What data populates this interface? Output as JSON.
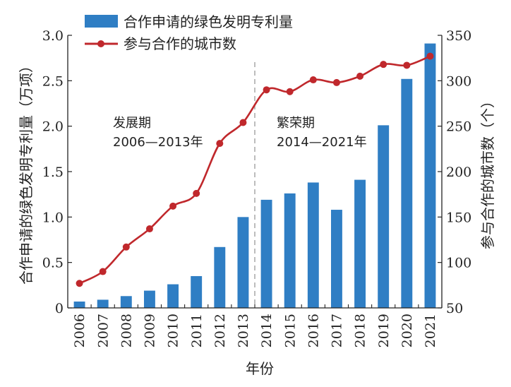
{
  "chart_data": {
    "type": "bar+line",
    "categories": [
      "2006",
      "2007",
      "2008",
      "2009",
      "2010",
      "2011",
      "2012",
      "2013",
      "2014",
      "2015",
      "2016",
      "2017",
      "2018",
      "2019",
      "2020",
      "2021"
    ],
    "series": [
      {
        "name": "合作申请的绿色发明专利量",
        "type": "bar",
        "axis": "left",
        "color": "#2f7ec4",
        "values": [
          0.07,
          0.09,
          0.13,
          0.19,
          0.26,
          0.35,
          0.67,
          1.0,
          1.19,
          1.26,
          1.38,
          1.08,
          1.41,
          2.01,
          2.52,
          2.91
        ]
      },
      {
        "name": "参与合作的城市数",
        "type": "line",
        "axis": "right",
        "color": "#c0282c",
        "values": [
          77,
          90,
          117,
          137,
          162,
          176,
          231,
          254,
          290,
          288,
          301,
          298,
          305,
          318,
          317,
          327
        ]
      }
    ],
    "xlabel": "年份",
    "ylabel_left": "合作申请的绿色发明专利量（万项）",
    "ylabel_right": "参与合作的城市数（个）",
    "ylim_left": [
      0,
      3.0
    ],
    "yticks_left": [
      "0",
      "0.5",
      "1.0",
      "1.5",
      "2.0",
      "2.5",
      "3.0"
    ],
    "ylim_right": [
      50,
      350
    ],
    "yticks_right": [
      "50",
      "100",
      "150",
      "200",
      "250",
      "300",
      "350"
    ],
    "divider_after": "2013",
    "annotations": [
      {
        "line1": "发展期",
        "line2": "2006—2013年"
      },
      {
        "line1": "繁荣期",
        "line2": "2014—2021年"
      }
    ],
    "legend_position": "top-left",
    "grid": false
  }
}
